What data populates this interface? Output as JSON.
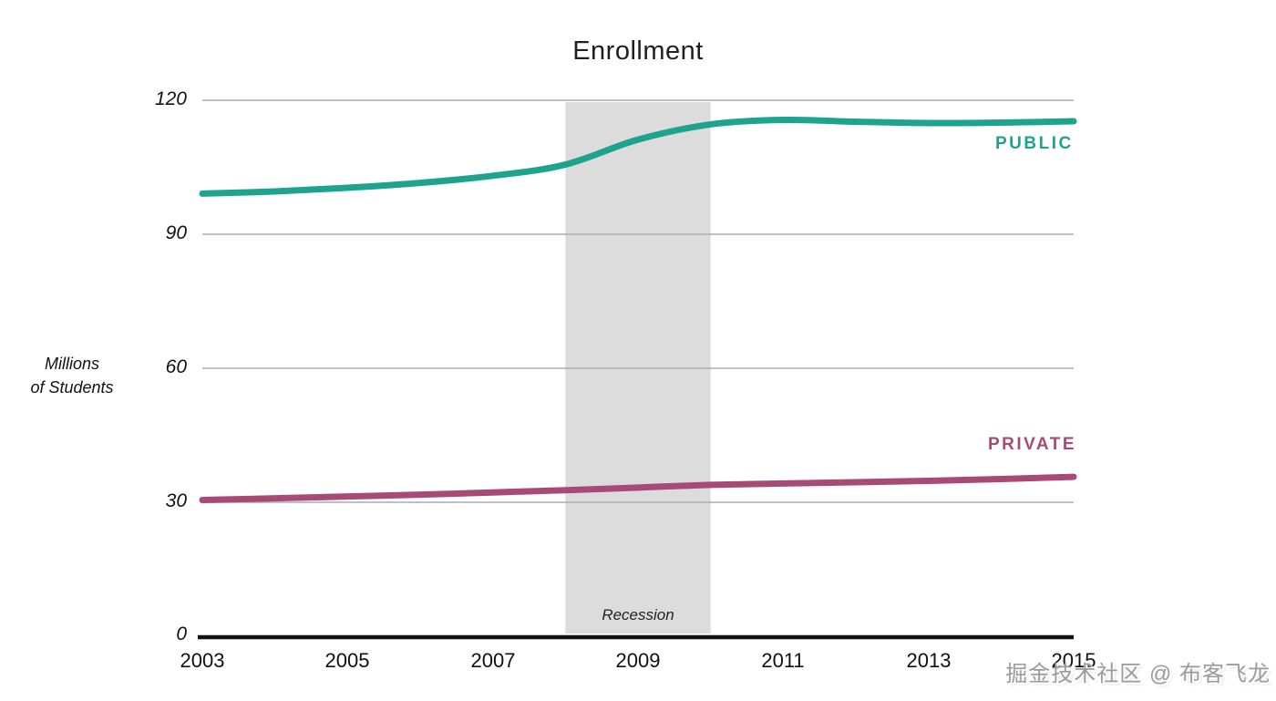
{
  "title": "Enrollment",
  "watermark_text": "掘金技术社区 @ 布客飞龙",
  "chart_data": {
    "type": "line",
    "title": "Enrollment",
    "ylabel_lines": [
      "Millions",
      "of Students"
    ],
    "xlabel": "",
    "x": [
      2003,
      2004,
      2005,
      2006,
      2007,
      2008,
      2009,
      2010,
      2011,
      2012,
      2013,
      2014,
      2015
    ],
    "x_tick_labels": [
      "2003",
      "2005",
      "2007",
      "2009",
      "2011",
      "2013",
      "2015"
    ],
    "y_ticks": [
      120,
      90,
      60,
      30,
      0
    ],
    "y_tick_labels": [
      "120",
      "90",
      "60",
      "30",
      "0"
    ],
    "ylim": [
      0,
      120
    ],
    "xlim": [
      2003,
      2015
    ],
    "grid": true,
    "legend_position": "end-of-line-labels",
    "series": [
      {
        "name": "PUBLIC",
        "color": "#1ea38e",
        "values": [
          99.1,
          99.6,
          100.4,
          101.5,
          103.1,
          105.6,
          111.2,
          114.6,
          115.6,
          115.2,
          114.9,
          115.0,
          115.3
        ]
      },
      {
        "name": "PRIVATE",
        "color": "#a84a78",
        "values": [
          30.5,
          30.9,
          31.3,
          31.7,
          32.2,
          32.7,
          33.3,
          33.9,
          34.2,
          34.5,
          34.8,
          35.2,
          35.7
        ]
      }
    ],
    "annotations": [
      {
        "label": "Recession",
        "x_start": 2008,
        "x_end": 2010,
        "band_color": "#dcdcdc"
      }
    ],
    "axis_color": "#111111",
    "gridline_color": "#ababab"
  }
}
